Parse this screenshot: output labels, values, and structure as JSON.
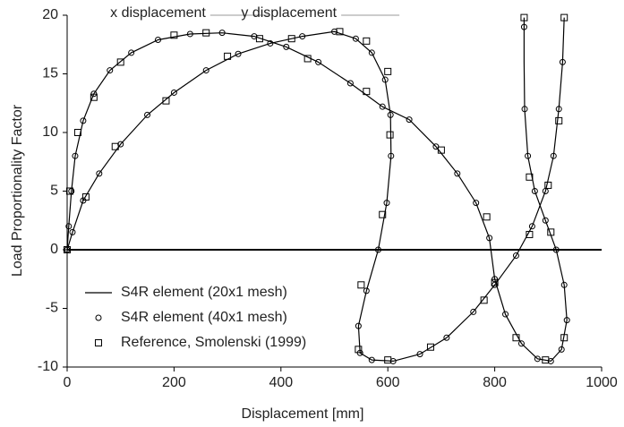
{
  "chart_data": {
    "type": "line",
    "xlabel": "Displacement [mm]",
    "ylabel": "Load Proportionality Factor",
    "xlim": [
      0,
      1000
    ],
    "xticks": [
      0,
      200,
      400,
      600,
      800,
      1000
    ],
    "ylim": [
      -10,
      20
    ],
    "yticks": [
      -10,
      -5,
      0,
      5,
      10,
      15,
      20
    ],
    "grid": false,
    "legend": "lower left",
    "annotations": [
      {
        "text": "x displacement",
        "x": 170,
        "y": 20
      },
      {
        "text": "y displacement",
        "x": 415,
        "y": 20
      }
    ],
    "series": [
      {
        "name": "S4R element (20x1 mesh)",
        "color": "#000000",
        "marker": "none",
        "x": [
          0,
          3,
          8,
          15,
          30,
          50,
          80,
          120,
          170,
          230,
          290,
          350,
          410,
          470,
          530,
          590,
          640,
          690,
          730,
          765,
          790,
          800,
          820,
          850,
          880,
          905,
          925,
          935,
          930,
          915,
          895,
          875,
          862,
          856,
          855,
          855,
          null,
          0,
          10,
          30,
          60,
          100,
          150,
          200,
          260,
          320,
          380,
          440,
          500,
          540,
          570,
          595,
          605,
          606,
          598,
          582,
          560,
          545,
          548,
          570,
          610,
          660,
          710,
          760,
          800,
          840,
          870,
          895,
          910,
          920,
          927,
          930
        ],
        "values": [
          0,
          2,
          5,
          8,
          11,
          13.3,
          15.3,
          16.8,
          17.9,
          18.4,
          18.5,
          18.2,
          17.3,
          16,
          14.2,
          12.2,
          11.1,
          8.8,
          6.5,
          4,
          1,
          -2.5,
          -5.5,
          -8,
          -9.3,
          -9.5,
          -8.5,
          -6,
          -3,
          0,
          2.5,
          5,
          8,
          12,
          16,
          19.8,
          null,
          0,
          1.5,
          4.2,
          6.5,
          9,
          11.5,
          13.4,
          15.3,
          16.7,
          17.6,
          18.2,
          18.6,
          18,
          16.8,
          14.5,
          11.5,
          8,
          4,
          0,
          -3.5,
          -6.5,
          -8.8,
          -9.4,
          -9.5,
          -8.9,
          -7.5,
          -5.3,
          -3,
          -0.5,
          2,
          5,
          8,
          12,
          16,
          19.8
        ]
      },
      {
        "name": "S4R element (40x1 mesh)",
        "color": "#000000",
        "marker": "circle",
        "x": [
          0,
          3,
          8,
          15,
          30,
          50,
          80,
          120,
          170,
          230,
          290,
          350,
          410,
          470,
          530,
          590,
          640,
          690,
          730,
          765,
          790,
          800,
          820,
          850,
          880,
          905,
          925,
          935,
          930,
          915,
          895,
          875,
          862,
          856,
          855,
          0,
          10,
          30,
          60,
          100,
          150,
          200,
          260,
          320,
          380,
          440,
          500,
          540,
          570,
          595,
          605,
          606,
          598,
          582,
          560,
          545,
          548,
          570,
          610,
          660,
          710,
          760,
          800,
          840,
          870,
          895,
          910,
          920,
          927
        ],
        "values": [
          0,
          2,
          5,
          8,
          11,
          13.3,
          15.3,
          16.8,
          17.9,
          18.4,
          18.5,
          18.2,
          17.3,
          16,
          14.2,
          12.2,
          11.1,
          8.8,
          6.5,
          4,
          1,
          -2.5,
          -5.5,
          -8,
          -9.3,
          -9.5,
          -8.5,
          -6,
          -3,
          0,
          2.5,
          5,
          8,
          12,
          19,
          0,
          1.5,
          4.2,
          6.5,
          9,
          11.5,
          13.4,
          15.3,
          16.7,
          17.6,
          18.2,
          18.6,
          18,
          16.8,
          14.5,
          11.5,
          8,
          4,
          0,
          -3.5,
          -6.5,
          -8.8,
          -9.4,
          -9.5,
          -8.9,
          -7.5,
          -5.3,
          -3,
          -0.5,
          2,
          5,
          8,
          12,
          16
        ]
      },
      {
        "name": "Reference, Smolenski (1999)",
        "color": "#000000",
        "marker": "square",
        "x": [
          0,
          5,
          20,
          50,
          100,
          200,
          260,
          360,
          450,
          560,
          700,
          785,
          800,
          840,
          895,
          930,
          905,
          865,
          855,
          0,
          35,
          90,
          185,
          300,
          420,
          510,
          560,
          600,
          604,
          590,
          550,
          545,
          600,
          680,
          780,
          865,
          900,
          920,
          930
        ],
        "values": [
          0,
          5,
          10,
          13,
          16,
          18.3,
          18.5,
          18,
          16.3,
          13.5,
          8.5,
          2.8,
          -2.8,
          -7.5,
          -9.4,
          -7.5,
          1.5,
          6.2,
          19.8,
          0,
          4.5,
          8.8,
          12.7,
          16.5,
          18,
          18.6,
          17.8,
          15.2,
          9.8,
          3,
          -3,
          -8.5,
          -9.4,
          -8.3,
          -4.3,
          1.3,
          5.5,
          11,
          19.8
        ]
      }
    ]
  }
}
